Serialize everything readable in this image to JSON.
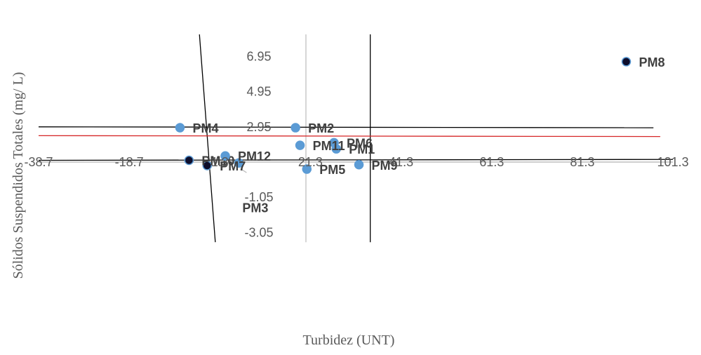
{
  "chart_data": {
    "type": "scatter",
    "title": "",
    "xlabel": "Turbidez (UNT)",
    "ylabel": "Sólidos Suspendidos Totales (mg/ L)",
    "xlim": [
      -38.7,
      101.3
    ],
    "ylim": [
      -3.05,
      7.5
    ],
    "x_ticks": [
      "-38.7",
      "-18.7",
      "1.3",
      "21.3",
      "41.3",
      "61.3",
      "81.3",
      "101.3"
    ],
    "y_ticks": [
      "6.95",
      "4.95",
      "2.95",
      "-1.05",
      "-3.05"
    ],
    "x_baseline_value": 0.95,
    "grid": false,
    "colors": {
      "marker_blue": "#5b9bd5",
      "marker_dark": "#0d0d2b",
      "gray_line": "#bfbfbf",
      "red_line": "#d62728",
      "black_line": "#000000"
    },
    "points": [
      {
        "label": "PM1",
        "x": 27.0,
        "y": 1.7,
        "color": "marker_blue"
      },
      {
        "label": "PM2",
        "x": 18.0,
        "y": 2.9,
        "color": "marker_blue"
      },
      {
        "label": "PM3",
        "x": 5.5,
        "y": 0.9,
        "color": "marker_blue"
      },
      {
        "label": "PM4",
        "x": -7.5,
        "y": 2.9,
        "color": "marker_blue"
      },
      {
        "label": "PM5",
        "x": 20.5,
        "y": 0.55,
        "color": "marker_blue"
      },
      {
        "label": "PM6",
        "x": 26.5,
        "y": 2.05,
        "color": "marker_blue"
      },
      {
        "label": "PM7",
        "x": -1.5,
        "y": 0.75,
        "color": "marker_dark"
      },
      {
        "label": "PM8",
        "x": 91.0,
        "y": 6.65,
        "color": "marker_dark"
      },
      {
        "label": "PM9",
        "x": 32.0,
        "y": 0.8,
        "color": "marker_blue"
      },
      {
        "label": "PM10",
        "x": -5.5,
        "y": 1.05,
        "color": "marker_dark"
      },
      {
        "label": "PM11",
        "x": 19.0,
        "y": 1.9,
        "color": "marker_blue"
      },
      {
        "label": "PM12",
        "x": 2.5,
        "y": 1.3,
        "color": "marker_blue"
      }
    ],
    "lines": [
      {
        "name": "vertical-gray",
        "color": "gray_line",
        "from": [
          20.3,
          -3.6
        ],
        "to": [
          20.3,
          8.2
        ]
      },
      {
        "name": "vertical-black-left",
        "color": "black_line",
        "from": [
          -3.2,
          8.2
        ],
        "to": [
          0.3,
          -3.6
        ]
      },
      {
        "name": "vertical-black-right",
        "color": "black_line",
        "from": [
          34.5,
          8.2
        ],
        "to": [
          34.5,
          -3.6
        ]
      },
      {
        "name": "horizontal-black-upper",
        "color": "black_line",
        "from": [
          -38.7,
          2.95
        ],
        "to": [
          97.0,
          2.9
        ]
      },
      {
        "name": "horizontal-red",
        "color": "red_line",
        "from": [
          -38.7,
          2.45
        ],
        "to": [
          98.5,
          2.4
        ]
      },
      {
        "name": "horizontal-black-lower",
        "color": "black_line",
        "from": [
          -38.7,
          1.05
        ],
        "to": [
          101.3,
          1.1
        ]
      },
      {
        "name": "short-gray-segment",
        "color": "gray_line",
        "from": [
          6.0,
          0.55
        ],
        "to": [
          7.2,
          0.35
        ]
      }
    ]
  }
}
